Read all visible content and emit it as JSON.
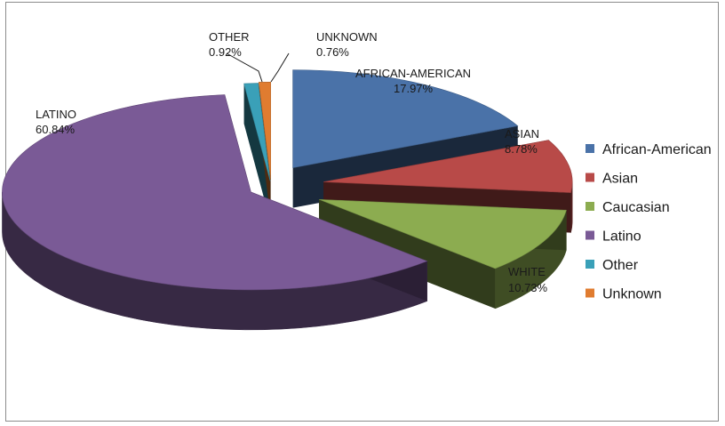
{
  "chart_data": {
    "type": "pie",
    "title": "",
    "legend_position": "right",
    "slices": [
      {
        "legend": "African-American",
        "label": "AFRICAN-AMERICAN",
        "percent_label": "17.97%",
        "value": 17.97,
        "color": "#4a72a8"
      },
      {
        "legend": "Asian",
        "label": "ASIAN",
        "percent_label": "8.78%",
        "value": 8.78,
        "color": "#b84a48"
      },
      {
        "legend": "Caucasian",
        "label": "WHITE",
        "percent_label": "10.73%",
        "value": 10.73,
        "color": "#8cac50"
      },
      {
        "legend": "Latino",
        "label": "LATINO",
        "percent_label": "60.84%",
        "value": 60.84,
        "color": "#7a5a96"
      },
      {
        "legend": "Other",
        "label": "OTHER",
        "percent_label": "0.92%",
        "value": 0.92,
        "color": "#3aa0b8"
      },
      {
        "legend": "Unknown",
        "label": "UNKNOWN",
        "percent_label": "0.76%",
        "value": 0.76,
        "color": "#e07c30"
      }
    ]
  }
}
